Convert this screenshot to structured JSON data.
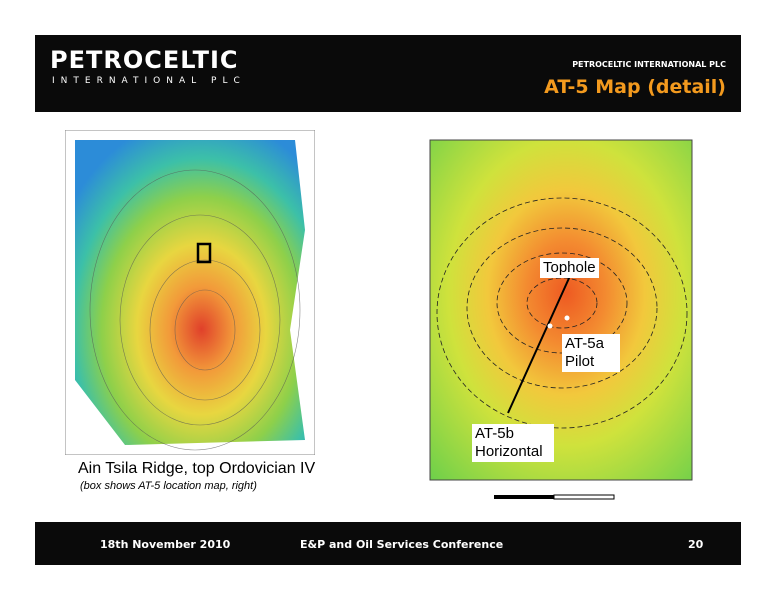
{
  "header": {
    "logo": "PETROCELTIC",
    "logo_sub": "INTERNATIONAL PLC",
    "company": "PETROCELTIC INTERNATIONAL PLC",
    "title": "AT-5 Map (detail)"
  },
  "left_map": {
    "caption": "Ain Tsila Ridge, top Ordovician IV",
    "subcaption": "(box shows AT-5 location map, right)"
  },
  "right_map": {
    "labels": [
      "Tophole",
      "AT-5a Pilot",
      "AT-5b Horizontal"
    ]
  },
  "footer": {
    "date": "18th November 2010",
    "event": "E&P and Oil Services Conference",
    "page": "20"
  }
}
